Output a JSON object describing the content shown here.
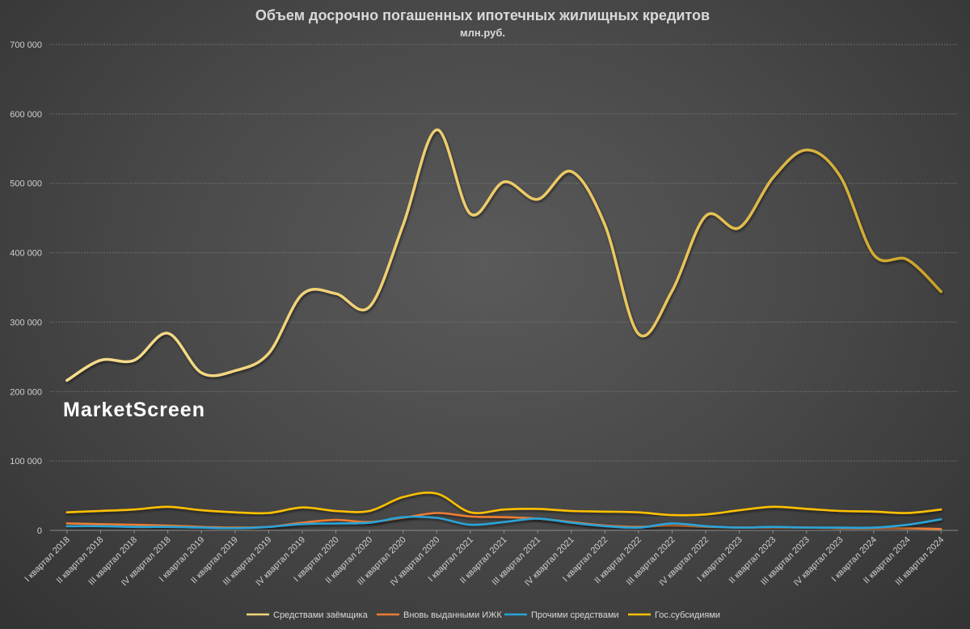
{
  "chart_data": {
    "type": "line",
    "title": "Объем досрочно погашенных ипотечных жилищных кредитов",
    "subtitle": "млн.руб.",
    "watermark": "MarketScreen",
    "xlabel": "",
    "ylabel": "",
    "ylim": [
      0,
      700000
    ],
    "yticks": [
      0,
      100000,
      200000,
      300000,
      400000,
      500000,
      600000,
      700000
    ],
    "ytick_labels": [
      "0",
      "100 000",
      "200 000",
      "300 000",
      "400 000",
      "500 000",
      "600 000",
      "700 000"
    ],
    "grid": true,
    "legend_position": "bottom",
    "categories": [
      "I квартал 2018",
      "II квартал 2018",
      "III квартал 2018",
      "IV квартал 2018",
      "I квартал 2019",
      "II квартал 2019",
      "III квартал 2019",
      "IV квартал 2019",
      "I квартал 2020",
      "II квартал 2020",
      "III квартал 2020",
      "IV квартал 2020",
      "I квартал 2021",
      "II квартал 2021",
      "III квартал 2021",
      "IV квартал 2021",
      "I квартал 2022",
      "II квартал 2022",
      "III квартал 2022",
      "IV квартал 2022",
      "I квартал 2023",
      "II квартал 2023",
      "III квартал 2023",
      "IV квартал 2023",
      "I квартал 2024",
      "II квартал 2024",
      "III квартал 2024"
    ],
    "series": [
      {
        "name": "Средствами заёмщика",
        "color": "#f4d57d",
        "values": [
          216000,
          245000,
          245000,
          284000,
          227000,
          230000,
          255000,
          340000,
          341000,
          322000,
          440000,
          577000,
          456000,
          502000,
          477000,
          517000,
          440000,
          283000,
          345000,
          453000,
          436000,
          508000,
          548000,
          510000,
          397000,
          390000,
          344000
        ]
      },
      {
        "name": "Вновь выданными ИЖК",
        "color": "#ed7d31",
        "values": [
          10000,
          9000,
          8000,
          7000,
          5000,
          4000,
          5000,
          11000,
          15000,
          12000,
          18000,
          25000,
          20000,
          19000,
          17000,
          12000,
          7000,
          5000,
          7000,
          5000,
          4000,
          4000,
          4000,
          3000,
          3000,
          3000,
          2000
        ]
      },
      {
        "name": "Прочими средствами",
        "color": "#29a3d8",
        "values": [
          6000,
          6000,
          5000,
          5000,
          4000,
          3000,
          5000,
          9000,
          10000,
          11000,
          19000,
          18000,
          8000,
          12000,
          17000,
          11000,
          6000,
          4000,
          10000,
          6000,
          4000,
          5000,
          4000,
          4000,
          4000,
          8000,
          16000
        ]
      },
      {
        "name": "Гос.субсидиями",
        "color": "#ffc000",
        "values": [
          26000,
          28000,
          30000,
          34000,
          29000,
          26000,
          25000,
          33000,
          28000,
          28000,
          48000,
          53000,
          26000,
          30000,
          31000,
          28000,
          27000,
          26000,
          22000,
          23000,
          29000,
          34000,
          31000,
          28000,
          27000,
          25000,
          30000
        ]
      }
    ]
  }
}
